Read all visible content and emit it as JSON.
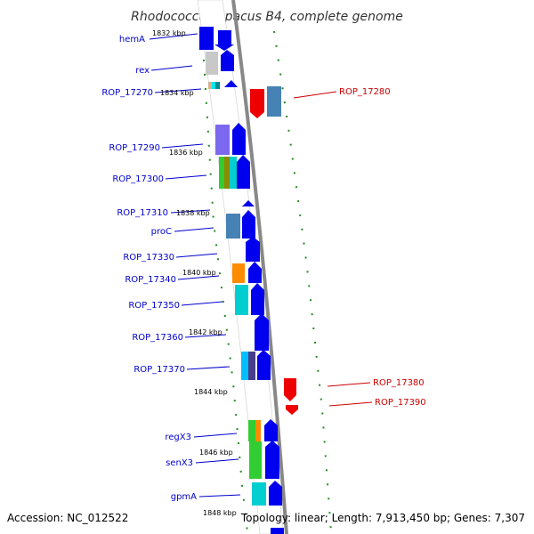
{
  "title": "Rhodococcus opacus B4, complete genome",
  "footer": {
    "accession": "Accession: NC_012522",
    "topology": "Topology: linear; Length: 7,913,450 bp; Genes: 7,307"
  },
  "colors": {
    "backbone": "#888888",
    "tick": "#228b22",
    "left_label": "#0000cc",
    "right_label": "#cc0000"
  },
  "kbp_labels": [
    "1832 kbp",
    "1834 kbp",
    "1836 kbp",
    "1838 kbp",
    "1840 kbp",
    "1842 kbp",
    "1844 kbp",
    "1846 kbp",
    "1848 kbp"
  ],
  "left_genes": [
    "hemA",
    "rex",
    "ROP_17270",
    "ROP_17290",
    "ROP_17300",
    "ROP_17310",
    "proC",
    "ROP_17330",
    "ROP_17340",
    "ROP_17350",
    "ROP_17360",
    "ROP_17370",
    "regX3",
    "senX3",
    "gpmA"
  ],
  "right_genes": [
    "ROP_17280",
    "ROP_17380",
    "ROP_17390"
  ]
}
